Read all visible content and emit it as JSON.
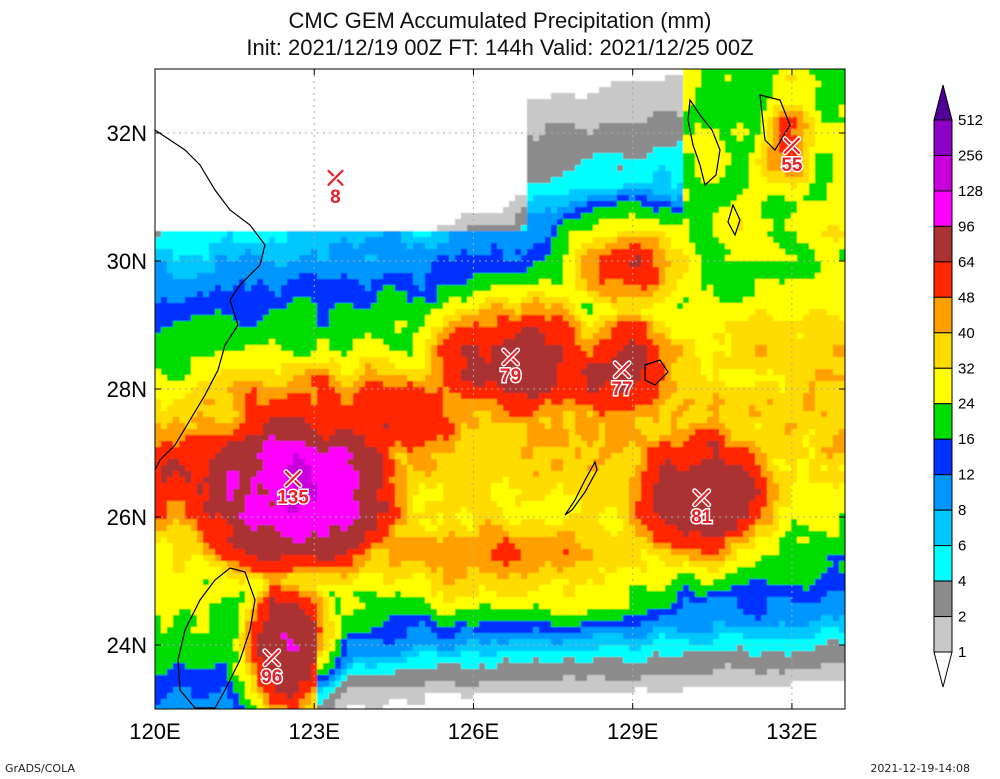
{
  "title_line1": "CMC GEM Accumulated Precipitation (mm)",
  "title_line2": "Init: 2021/12/19 00Z  FT: 144h  Valid: 2021/12/25 00Z",
  "footer_left": "GrADS/COLA",
  "footer_right": "2021-12-19-14:08",
  "chart_data": {
    "type": "heatmap",
    "title": "CMC GEM Accumulated Precipitation (mm)",
    "subtitle": "Init: 2021/12/19 00Z  FT: 144h  Valid: 2021/12/25 00Z",
    "x_ticks": [
      {
        "value": 120,
        "label": "120E"
      },
      {
        "value": 123,
        "label": "123E"
      },
      {
        "value": 126,
        "label": "126E"
      },
      {
        "value": 129,
        "label": "129E"
      },
      {
        "value": 132,
        "label": "132E"
      }
    ],
    "y_ticks": [
      {
        "value": 24,
        "label": "24N"
      },
      {
        "value": 26,
        "label": "26N"
      },
      {
        "value": 28,
        "label": "28N"
      },
      {
        "value": 30,
        "label": "30N"
      },
      {
        "value": 32,
        "label": "32N"
      }
    ],
    "xlim": [
      120,
      133
    ],
    "ylim": [
      23,
      33
    ],
    "colorbar": {
      "levels": [
        "1",
        "2",
        "4",
        "6",
        "8",
        "12",
        "16",
        "24",
        "32",
        "40",
        "48",
        "64",
        "96",
        "128",
        "256",
        "512"
      ],
      "colors": [
        "#ffffff",
        "#c8c8c8",
        "#8c8c8c",
        "#00ffff",
        "#00c8ff",
        "#0096ff",
        "#0032ff",
        "#00dc00",
        "#ffff00",
        "#ffdc00",
        "#ffa000",
        "#ff2800",
        "#aa3232",
        "#ff00ff",
        "#c800dc",
        "#8c00c8",
        "#500096"
      ]
    },
    "local_maxima": [
      {
        "lon": 123.4,
        "lat": 31.3,
        "value": 8,
        "label": "8"
      },
      {
        "lon": 132.0,
        "lat": 31.8,
        "value": 55,
        "label": "55"
      },
      {
        "lon": 126.7,
        "lat": 28.5,
        "value": 79,
        "label": "79"
      },
      {
        "lon": 128.8,
        "lat": 28.3,
        "value": 77,
        "label": "77"
      },
      {
        "lon": 122.6,
        "lat": 26.6,
        "value": 135,
        "label": "135"
      },
      {
        "lon": 130.3,
        "lat": 26.3,
        "value": 81,
        "label": "81"
      },
      {
        "lon": 122.2,
        "lat": 23.8,
        "value": 96,
        "label": "96"
      }
    ],
    "field_centers": [
      {
        "lon": 122.6,
        "lat": 26.4,
        "value": 135,
        "rx": 1.4,
        "ry": 0.9
      },
      {
        "lon": 121.2,
        "lat": 26.6,
        "value": 70,
        "rx": 1.8,
        "ry": 0.9
      },
      {
        "lon": 130.3,
        "lat": 26.4,
        "value": 81,
        "rx": 1.2,
        "ry": 0.9
      },
      {
        "lon": 126.8,
        "lat": 28.4,
        "value": 79,
        "rx": 1.3,
        "ry": 0.8
      },
      {
        "lon": 128.8,
        "lat": 28.3,
        "value": 77,
        "rx": 1.0,
        "ry": 0.7
      },
      {
        "lon": 129.0,
        "lat": 29.9,
        "value": 60,
        "rx": 1.0,
        "ry": 0.6
      },
      {
        "lon": 123.8,
        "lat": 27.6,
        "value": 55,
        "rx": 3.0,
        "ry": 0.8
      },
      {
        "lon": 127.5,
        "lat": 27.3,
        "value": 40,
        "rx": 3.0,
        "ry": 1.2
      },
      {
        "lon": 122.5,
        "lat": 24.0,
        "value": 96,
        "rx": 0.6,
        "ry": 0.8
      },
      {
        "lon": 131.9,
        "lat": 31.8,
        "value": 55,
        "rx": 0.5,
        "ry": 0.6
      },
      {
        "lon": 126.5,
        "lat": 25.4,
        "value": 45,
        "rx": 3.0,
        "ry": 0.8
      }
    ]
  }
}
